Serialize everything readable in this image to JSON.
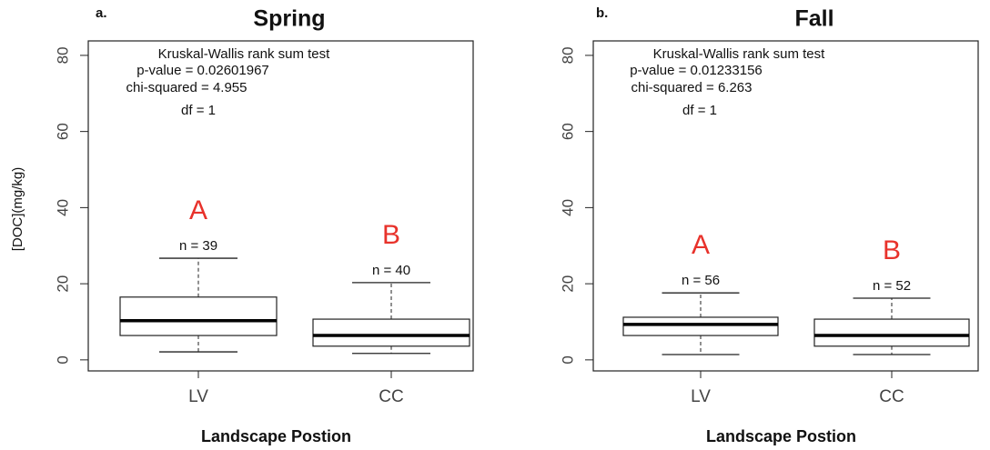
{
  "chart_data": [
    {
      "type": "box",
      "panel_label": "a.",
      "title": "Spring",
      "annotations": [
        "Kruskal-Wallis rank sum test",
        "p-value = 0.02601967",
        "chi-squared = 4.955",
        "df = 1"
      ],
      "xlabel": "Landscape Postion",
      "ylabel": "[DOC](mg/kg)",
      "categories": [
        "LV",
        "CC"
      ],
      "whisker_low": [
        2.1,
        1.7
      ],
      "q1": [
        6.4,
        3.6
      ],
      "median": [
        10.3,
        6.4
      ],
      "q3": [
        16.5,
        10.7
      ],
      "whisker_high": [
        26.7,
        20.3
      ],
      "n_labels": [
        "n = 39",
        "n = 40"
      ],
      "group_letters": [
        "A",
        "B"
      ],
      "ylim": [
        -2.9,
        83.8
      ],
      "yticks": [
        0,
        20,
        40,
        60,
        80
      ]
    },
    {
      "type": "box",
      "panel_label": "b.",
      "title": "Fall",
      "annotations": [
        "Kruskal-Wallis rank sum test",
        "p-value = 0.01233156",
        "chi-squared = 6.263",
        "df = 1"
      ],
      "xlabel": "Landscape Postion",
      "categories": [
        "LV",
        "CC"
      ],
      "whisker_low": [
        1.4,
        1.4
      ],
      "q1": [
        6.4,
        3.6
      ],
      "median": [
        9.3,
        6.4
      ],
      "q3": [
        11.2,
        10.7
      ],
      "whisker_high": [
        17.6,
        16.2
      ],
      "n_labels": [
        "n = 56",
        "n = 52"
      ],
      "group_letters": [
        "A",
        "B"
      ],
      "ylim": [
        -2.9,
        83.8
      ],
      "yticks": [
        0,
        20,
        40,
        60,
        80
      ]
    }
  ]
}
